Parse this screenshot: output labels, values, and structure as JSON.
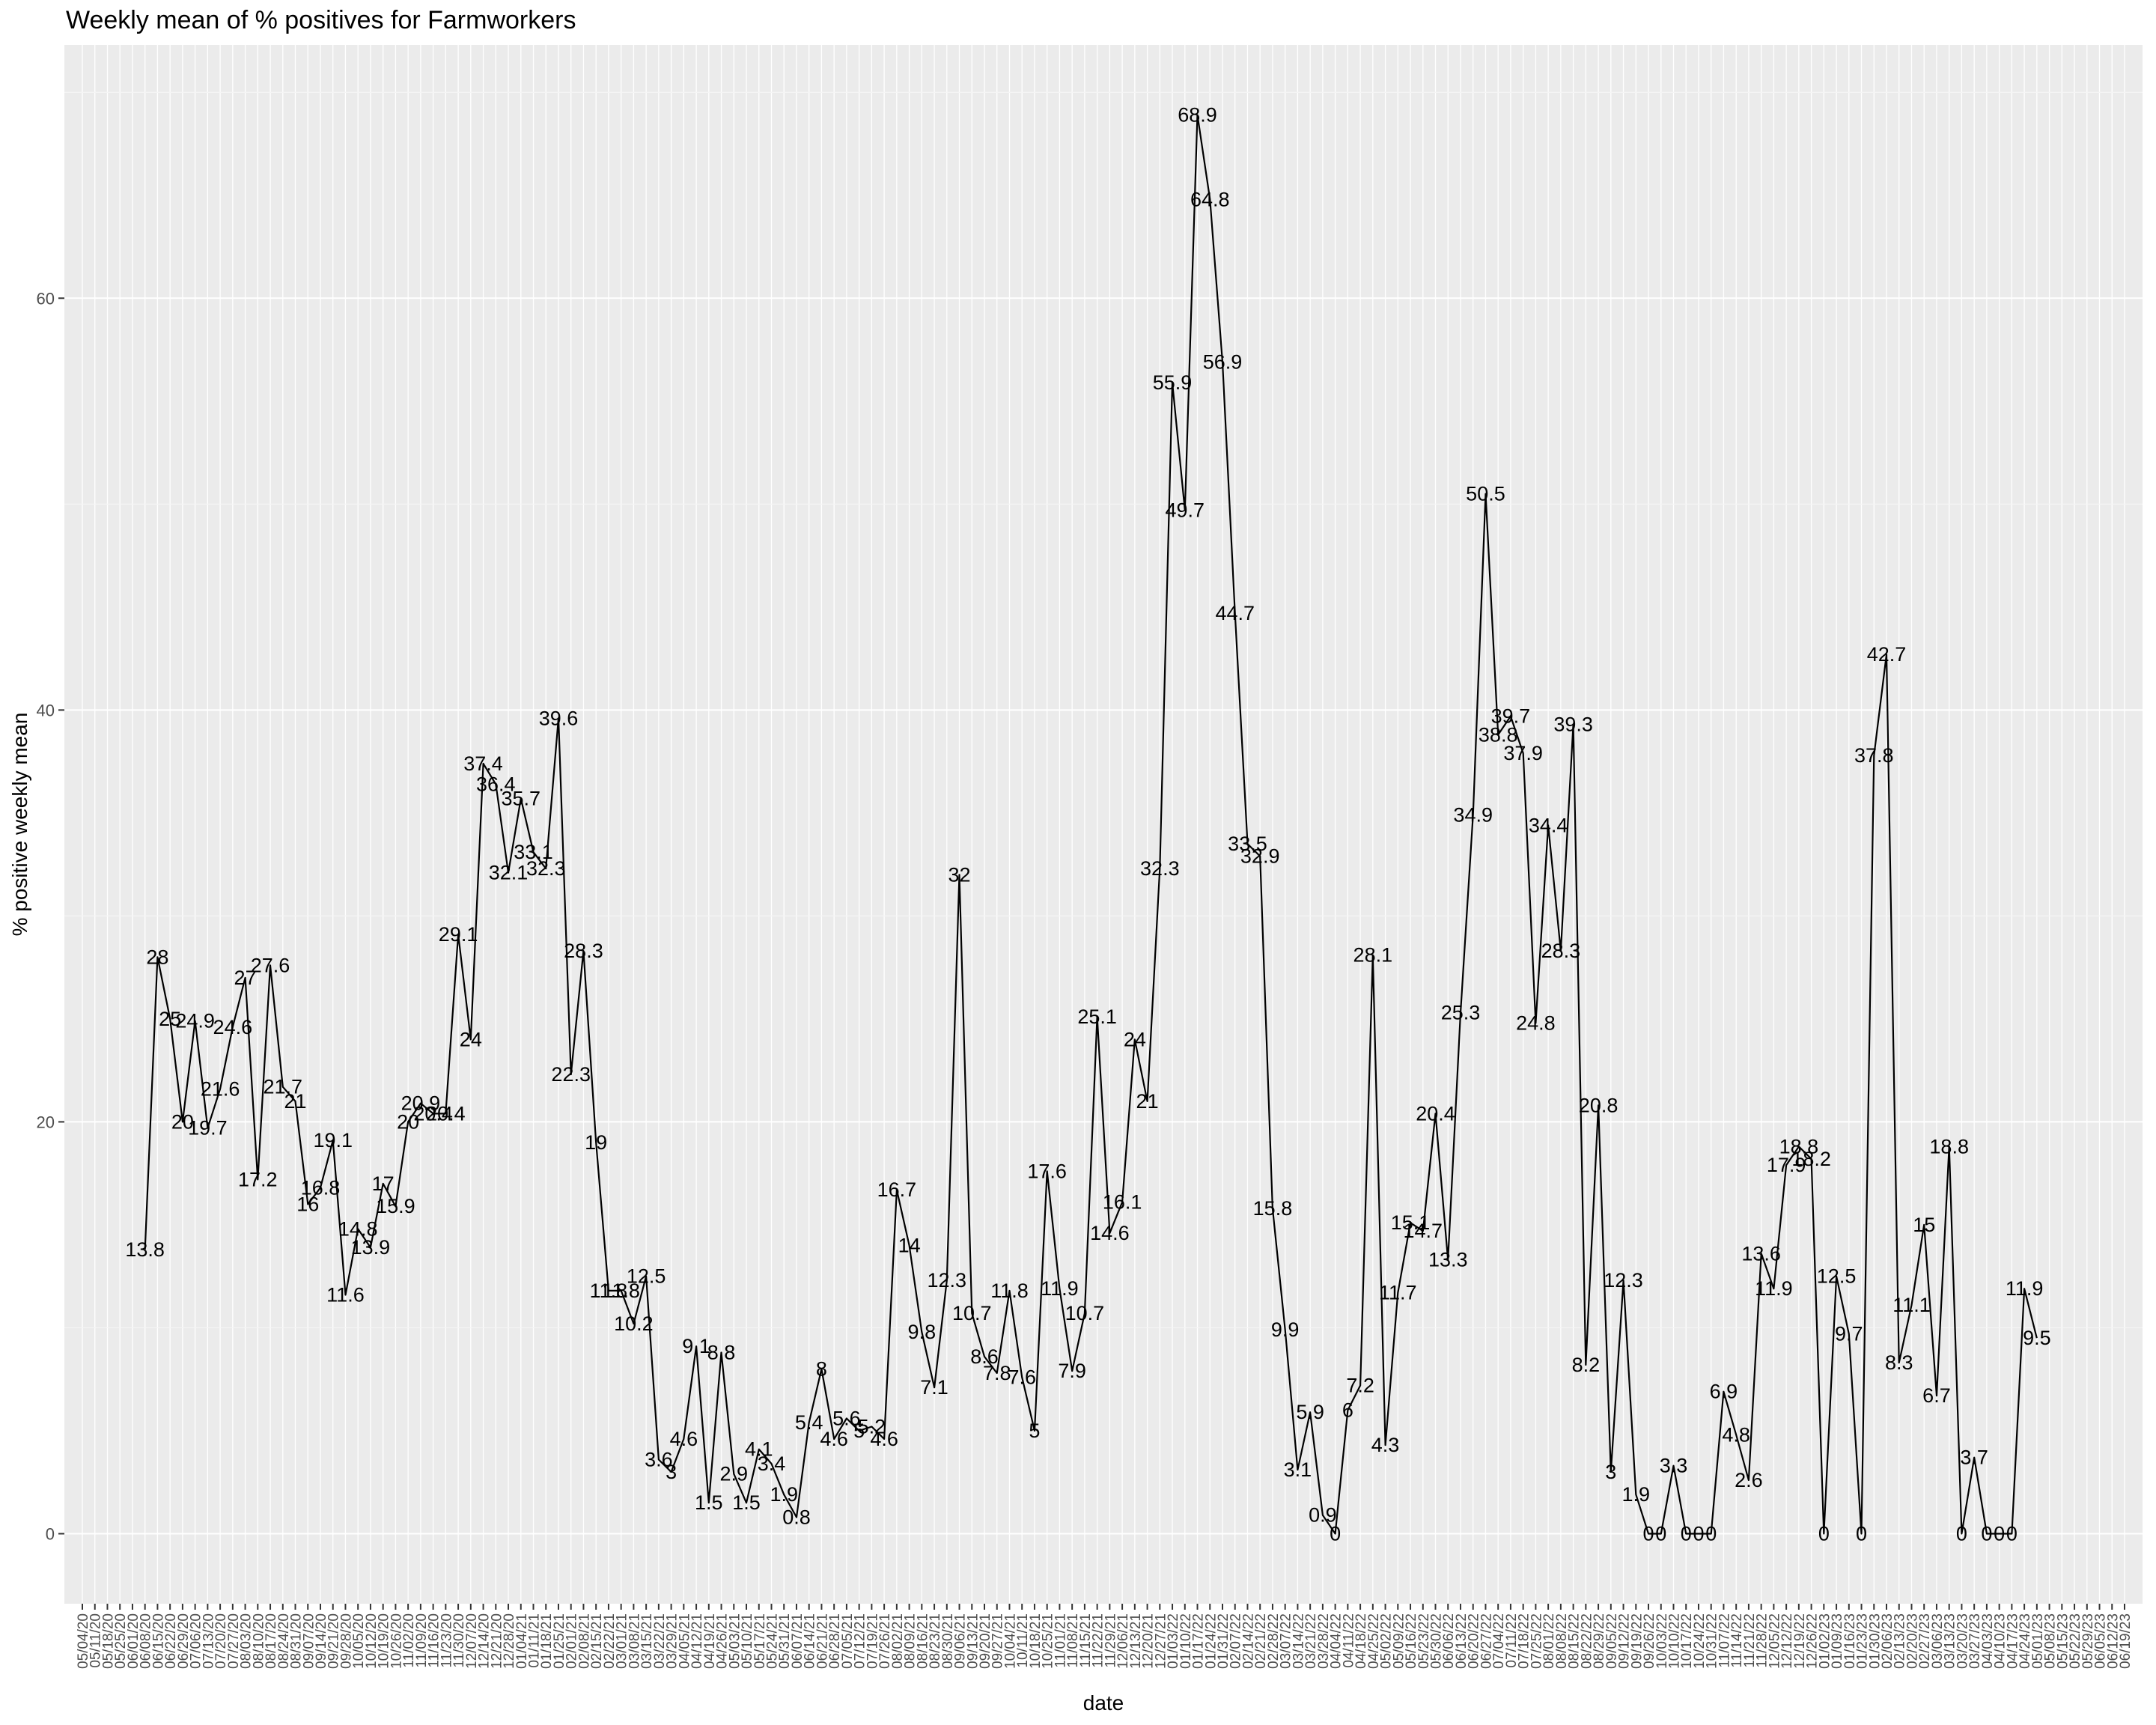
{
  "chart_data": {
    "type": "line",
    "title": "Weekly mean of % positives for Farmworkers",
    "xlabel": "date",
    "ylabel": "% positive weekly mean",
    "ylim": [
      -3.4,
      72.3
    ],
    "y_ticks": [
      0,
      20,
      40,
      60
    ],
    "grid": true,
    "colors": {
      "panel": "#ebebeb",
      "grid_major": "#ffffff",
      "grid_minor": "#f5f5f5",
      "line": "#000000",
      "tick_text": "#4d4d4d"
    },
    "x_ticks": [
      "05/04/20",
      "05/11/20",
      "05/18/20",
      "05/25/20",
      "06/01/20",
      "06/08/20",
      "06/15/20",
      "06/22/20",
      "06/29/20",
      "07/06/20",
      "07/13/20",
      "07/20/20",
      "07/27/20",
      "08/03/20",
      "08/10/20",
      "08/17/20",
      "08/24/20",
      "08/31/20",
      "09/07/20",
      "09/14/20",
      "09/21/20",
      "09/28/20",
      "10/05/20",
      "10/12/20",
      "10/19/20",
      "10/26/20",
      "11/02/20",
      "11/09/20",
      "11/16/20",
      "11/23/20",
      "11/30/20",
      "12/07/20",
      "12/14/20",
      "12/21/20",
      "12/28/20",
      "01/04/21",
      "01/11/21",
      "01/18/21",
      "01/25/21",
      "02/01/21",
      "02/08/21",
      "02/15/21",
      "02/22/21",
      "03/01/21",
      "03/08/21",
      "03/15/21",
      "03/22/21",
      "03/29/21",
      "04/05/21",
      "04/12/21",
      "04/19/21",
      "04/26/21",
      "05/03/21",
      "05/10/21",
      "05/17/21",
      "05/24/21",
      "05/31/21",
      "06/07/21",
      "06/14/21",
      "06/21/21",
      "06/28/21",
      "07/05/21",
      "07/12/21",
      "07/19/21",
      "07/26/21",
      "08/02/21",
      "08/09/21",
      "08/16/21",
      "08/23/21",
      "08/30/21",
      "09/06/21",
      "09/13/21",
      "09/20/21",
      "09/27/21",
      "10/04/21",
      "10/11/21",
      "10/18/21",
      "10/25/21",
      "11/01/21",
      "11/08/21",
      "11/15/21",
      "11/22/21",
      "11/29/21",
      "12/06/21",
      "12/13/21",
      "12/20/21",
      "12/27/21",
      "01/03/22",
      "01/10/22",
      "01/17/22",
      "01/24/22",
      "01/31/22",
      "02/07/22",
      "02/14/22",
      "02/21/22",
      "02/28/22",
      "03/07/22",
      "03/14/22",
      "03/21/22",
      "03/28/22",
      "04/04/22",
      "04/11/22",
      "04/18/22",
      "04/25/22",
      "05/02/22",
      "05/09/22",
      "05/16/22",
      "05/23/22",
      "05/30/22",
      "06/06/22",
      "06/13/22",
      "06/20/22",
      "06/27/22",
      "07/04/22",
      "07/11/22",
      "07/18/22",
      "07/25/22",
      "08/01/22",
      "08/08/22",
      "08/15/22",
      "08/22/22",
      "08/29/22",
      "09/05/22",
      "09/12/22",
      "09/19/22",
      "09/26/22",
      "10/03/22",
      "10/10/22",
      "10/17/22",
      "10/24/22",
      "10/31/22",
      "11/07/22",
      "11/14/22",
      "11/21/22",
      "11/28/22",
      "12/05/22",
      "12/12/22",
      "12/19/22",
      "12/26/22",
      "01/02/23",
      "01/09/23",
      "01/16/23",
      "01/23/23",
      "01/30/23",
      "02/06/23",
      "02/13/23",
      "02/20/23",
      "02/27/23",
      "03/06/23",
      "03/13/23",
      "03/20/23",
      "03/27/23",
      "04/03/23",
      "04/10/23",
      "04/17/23",
      "04/24/23",
      "05/01/23",
      "05/08/23",
      "05/15/23",
      "05/22/23",
      "05/29/23",
      "06/05/23",
      "06/12/23",
      "06/19/23"
    ],
    "series": [
      {
        "points": [
          [
            "06/08/20",
            13.8
          ],
          [
            "06/15/20",
            28
          ],
          [
            "06/22/20",
            25
          ],
          [
            "06/29/20",
            20
          ],
          [
            "07/06/20",
            24.9
          ],
          [
            "07/13/20",
            19.7
          ],
          [
            "07/20/20",
            21.6
          ],
          [
            "07/27/20",
            24.6
          ],
          [
            "08/03/20",
            27
          ],
          [
            "08/10/20",
            17.2
          ],
          [
            "08/17/20",
            27.6
          ],
          [
            "08/24/20",
            21.7
          ],
          [
            "08/31/20",
            21
          ],
          [
            "09/07/20",
            16
          ],
          [
            "09/14/20",
            16.8
          ],
          [
            "09/21/20",
            19.1
          ],
          [
            "09/28/20",
            11.6
          ],
          [
            "10/05/20",
            14.8
          ],
          [
            "10/12/20",
            13.9
          ],
          [
            "10/19/20",
            17
          ],
          [
            "10/26/20",
            15.9
          ],
          [
            "11/02/20",
            20
          ],
          [
            "11/09/20",
            20.9
          ],
          [
            "11/16/20",
            20.4
          ],
          [
            "11/23/20",
            20.4
          ],
          [
            "11/30/20",
            29.1
          ],
          [
            "12/07/20",
            24
          ],
          [
            "12/14/20",
            37.4
          ],
          [
            "12/21/20",
            36.4
          ],
          [
            "12/28/20",
            32.1
          ],
          [
            "01/04/21",
            35.7
          ],
          [
            "01/11/21",
            33.1
          ],
          [
            "01/18/21",
            32.3
          ],
          [
            "01/25/21",
            39.6
          ],
          [
            "02/01/21",
            22.3
          ],
          [
            "02/08/21",
            28.3
          ],
          [
            "02/15/21",
            19
          ],
          [
            "02/22/21",
            11.8
          ],
          [
            "03/01/21",
            11.8
          ],
          [
            "03/08/21",
            10.2
          ],
          [
            "03/15/21",
            12.5
          ],
          [
            "03/22/21",
            3.6
          ],
          [
            "03/29/21",
            3
          ],
          [
            "04/05/21",
            4.6
          ],
          [
            "04/12/21",
            9.1
          ],
          [
            "04/19/21",
            1.5
          ],
          [
            "04/26/21",
            8.8
          ],
          [
            "05/03/21",
            2.9
          ],
          [
            "05/10/21",
            1.5
          ],
          [
            "05/17/21",
            4.1
          ],
          [
            "05/24/21",
            3.4
          ],
          [
            "05/31/21",
            1.9
          ],
          [
            "06/07/21",
            0.8
          ],
          [
            "06/14/21",
            5.4
          ],
          [
            "06/21/21",
            8
          ],
          [
            "06/28/21",
            4.6
          ],
          [
            "07/05/21",
            5.6
          ],
          [
            "07/12/21",
            5
          ],
          [
            "07/19/21",
            5.2
          ],
          [
            "07/26/21",
            4.6
          ],
          [
            "08/02/21",
            16.7
          ],
          [
            "08/09/21",
            14
          ],
          [
            "08/16/21",
            9.8
          ],
          [
            "08/23/21",
            7.1
          ],
          [
            "08/30/21",
            12.3
          ],
          [
            "09/06/21",
            32
          ],
          [
            "09/13/21",
            10.7
          ],
          [
            "09/20/21",
            8.6
          ],
          [
            "09/27/21",
            7.8
          ],
          [
            "10/04/21",
            11.8
          ],
          [
            "10/11/21",
            7.6
          ],
          [
            "10/18/21",
            5
          ],
          [
            "10/25/21",
            17.6
          ],
          [
            "11/01/21",
            11.9
          ],
          [
            "11/08/21",
            7.9
          ],
          [
            "11/15/21",
            10.7
          ],
          [
            "11/22/21",
            25.1
          ],
          [
            "11/29/21",
            14.6
          ],
          [
            "12/06/21",
            16.1
          ],
          [
            "12/13/21",
            24
          ],
          [
            "12/20/21",
            21
          ],
          [
            "12/27/21",
            32.3
          ],
          [
            "01/03/22",
            55.9
          ],
          [
            "01/10/22",
            49.7
          ],
          [
            "01/17/22",
            68.9
          ],
          [
            "01/24/22",
            64.8
          ],
          [
            "01/31/22",
            56.9
          ],
          [
            "02/07/22",
            44.7
          ],
          [
            "02/14/22",
            33.5
          ],
          [
            "02/21/22",
            32.9
          ],
          [
            "02/28/22",
            15.8
          ],
          [
            "03/07/22",
            9.9
          ],
          [
            "03/14/22",
            3.1
          ],
          [
            "03/21/22",
            5.9
          ],
          [
            "03/28/22",
            0.9
          ],
          [
            "04/04/22",
            0
          ],
          [
            "04/11/22",
            6
          ],
          [
            "04/18/22",
            7.2
          ],
          [
            "04/25/22",
            28.1
          ],
          [
            "05/02/22",
            4.3
          ],
          [
            "05/09/22",
            11.7
          ],
          [
            "05/16/22",
            15.1
          ],
          [
            "05/23/22",
            14.7
          ],
          [
            "05/30/22",
            20.4
          ],
          [
            "06/06/22",
            13.3
          ],
          [
            "06/13/22",
            25.3
          ],
          [
            "06/20/22",
            34.9
          ],
          [
            "06/27/22",
            50.5
          ],
          [
            "07/04/22",
            38.8
          ],
          [
            "07/11/22",
            39.7
          ],
          [
            "07/18/22",
            37.9
          ],
          [
            "07/25/22",
            24.8
          ],
          [
            "08/01/22",
            34.4
          ],
          [
            "08/08/22",
            28.3
          ],
          [
            "08/15/22",
            39.3
          ],
          [
            "08/22/22",
            8.2
          ],
          [
            "08/29/22",
            20.8
          ],
          [
            "09/05/22",
            3
          ],
          [
            "09/12/22",
            12.3
          ],
          [
            "09/19/22",
            1.9
          ],
          [
            "09/26/22",
            0
          ],
          [
            "10/03/22",
            0
          ],
          [
            "10/10/22",
            3.3
          ],
          [
            "10/17/22",
            0
          ],
          [
            "10/24/22",
            0
          ],
          [
            "10/31/22",
            0
          ],
          [
            "11/07/22",
            6.9
          ],
          [
            "11/14/22",
            4.8
          ],
          [
            "11/21/22",
            2.6
          ],
          [
            "11/28/22",
            13.6
          ],
          [
            "12/05/22",
            11.9
          ],
          [
            "12/12/22",
            17.9
          ],
          [
            "12/19/22",
            18.8
          ],
          [
            "12/26/22",
            18.2
          ],
          [
            "01/02/23",
            0
          ],
          [
            "01/09/23",
            12.5
          ],
          [
            "01/16/23",
            9.7
          ],
          [
            "01/23/23",
            0
          ],
          [
            "01/30/23",
            37.8
          ],
          [
            "02/06/23",
            42.7
          ],
          [
            "02/13/23",
            8.3
          ],
          [
            "02/20/23",
            11.1
          ],
          [
            "02/27/23",
            15
          ],
          [
            "03/06/23",
            6.7
          ],
          [
            "03/13/23",
            18.8
          ],
          [
            "03/20/23",
            0
          ],
          [
            "03/27/23",
            3.7
          ],
          [
            "04/03/23",
            0
          ],
          [
            "04/10/23",
            0
          ],
          [
            "04/17/23",
            0
          ],
          [
            "04/24/23",
            11.9
          ],
          [
            "05/01/23",
            9.5
          ]
        ]
      }
    ]
  }
}
